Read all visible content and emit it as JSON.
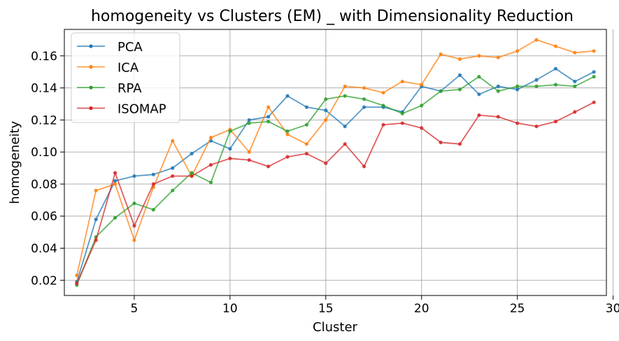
{
  "chart_data": {
    "type": "line",
    "title": "homogeneity vs Clusters (EM) _ with Dimensionality Reduction",
    "xlabel": "Cluster",
    "ylabel": "homogeneity",
    "xlim": [
      1.35,
      29.65
    ],
    "ylim": [
      0.0105,
      0.1765
    ],
    "x_ticks": [
      5,
      10,
      15,
      20,
      25,
      30
    ],
    "y_ticks": [
      0.02,
      0.04,
      0.06,
      0.08,
      0.1,
      0.12,
      0.14,
      0.16
    ],
    "x_tick_labels": [
      "5",
      "10",
      "15",
      "20",
      "25",
      "30"
    ],
    "y_tick_labels": [
      "0.02",
      "0.04",
      "0.06",
      "0.08",
      "0.10",
      "0.12",
      "0.14",
      "0.16"
    ],
    "grid": true,
    "legend_position": "top-left",
    "x": [
      2,
      3,
      4,
      5,
      6,
      7,
      8,
      9,
      10,
      11,
      12,
      13,
      14,
      15,
      16,
      17,
      18,
      19,
      20,
      21,
      22,
      23,
      24,
      25,
      26,
      27,
      28,
      29
    ],
    "series": [
      {
        "name": "PCA",
        "color": "#1f77b4",
        "values": [
          0.019,
          0.058,
          0.082,
          0.085,
          0.086,
          0.09,
          0.099,
          0.107,
          0.102,
          0.12,
          0.122,
          0.135,
          0.128,
          0.126,
          0.116,
          0.128,
          0.128,
          0.125,
          0.141,
          0.138,
          0.148,
          0.136,
          0.141,
          0.139,
          0.145,
          0.152,
          0.144,
          0.15
        ]
      },
      {
        "name": "ICA",
        "color": "#ff7f0e",
        "values": [
          0.023,
          0.076,
          0.08,
          0.045,
          0.078,
          0.107,
          0.085,
          0.109,
          0.114,
          0.1,
          0.128,
          0.111,
          0.105,
          0.12,
          0.141,
          0.14,
          0.137,
          0.144,
          0.142,
          0.161,
          0.158,
          0.16,
          0.159,
          0.163,
          0.17,
          0.166,
          0.162,
          0.163
        ]
      },
      {
        "name": "RPA",
        "color": "#2ca02c",
        "values": [
          0.017,
          0.047,
          0.059,
          0.068,
          0.064,
          0.076,
          0.087,
          0.081,
          0.113,
          0.118,
          0.119,
          0.113,
          0.117,
          0.133,
          0.135,
          0.133,
          0.129,
          0.124,
          0.129,
          0.138,
          0.139,
          0.147,
          0.138,
          0.141,
          0.141,
          0.142,
          0.141,
          0.147
        ]
      },
      {
        "name": "ISOMAP",
        "color": "#d62728",
        "values": [
          0.018,
          0.045,
          0.087,
          0.054,
          0.08,
          0.085,
          0.085,
          0.092,
          0.096,
          0.095,
          0.091,
          0.097,
          0.099,
          0.093,
          0.105,
          0.091,
          0.117,
          0.118,
          0.115,
          0.106,
          0.105,
          0.123,
          0.122,
          0.118,
          0.116,
          0.119,
          0.125,
          0.131
        ]
      }
    ]
  }
}
